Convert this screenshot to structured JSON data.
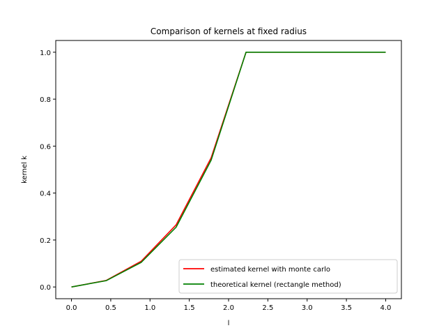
{
  "chart_data": {
    "type": "line",
    "title": "Comparison of kernels at fixed radius",
    "xlabel": "l",
    "ylabel": "kernel k",
    "xlim": [
      -0.2,
      4.2
    ],
    "ylim": [
      -0.05,
      1.05
    ],
    "xticks": [
      0.0,
      0.5,
      1.0,
      1.5,
      2.0,
      2.5,
      3.0,
      3.5,
      4.0
    ],
    "xtick_labels": [
      "0.0",
      "0.5",
      "1.0",
      "1.5",
      "2.0",
      "2.5",
      "3.0",
      "3.5",
      "4.0"
    ],
    "yticks": [
      0.0,
      0.2,
      0.4,
      0.6,
      0.8,
      1.0
    ],
    "ytick_labels": [
      "0.0",
      "0.2",
      "0.4",
      "0.6",
      "0.8",
      "1.0"
    ],
    "grid": false,
    "legend_position": "lower-right",
    "x": [
      0.0,
      0.444,
      0.889,
      1.333,
      1.778,
      2.222,
      2.667,
      3.111,
      3.556,
      4.0
    ],
    "series": [
      {
        "name": "estimated kernel with monte carlo",
        "color": "#ff0000",
        "values": [
          0.0,
          0.028,
          0.11,
          0.265,
          0.55,
          1.0,
          1.0,
          1.0,
          1.0,
          1.0
        ]
      },
      {
        "name": "theoretical kernel (rectangle method)",
        "color": "#008000",
        "values": [
          0.0,
          0.027,
          0.105,
          0.255,
          0.54,
          1.0,
          1.0,
          1.0,
          1.0,
          1.0
        ]
      }
    ]
  }
}
